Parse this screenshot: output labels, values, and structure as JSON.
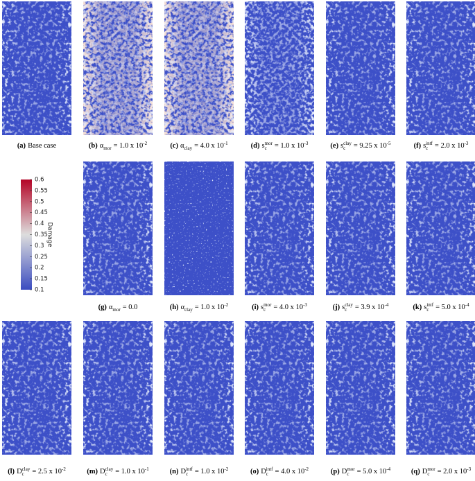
{
  "colorbar": {
    "label": "Damage",
    "range": [
      0.1,
      0.6
    ],
    "ticks": [
      0.1,
      0.15,
      0.2,
      0.25,
      0.3,
      0.35,
      0.4,
      0.45,
      0.5,
      0.55,
      0.6
    ],
    "colors": [
      "#3b4cc0",
      "#dddddd",
      "#b40426"
    ]
  },
  "panels": [
    {
      "letter": "(a)",
      "rest": "Base case"
    },
    {
      "letter": "(b)",
      "symbol": "α",
      "sub": "mor",
      "rest": "= 1.0 x 10",
      "exp": "-2"
    },
    {
      "letter": "(c)",
      "symbol": "α",
      "sub": "clay",
      "rest": "= 4.0 x 10",
      "exp": "-1"
    },
    {
      "letter": "(d)",
      "symbol": "s",
      "sub": "c",
      "sup": "mor",
      "rest": "= 1.0 x 10",
      "exp": "-3"
    },
    {
      "letter": "(e)",
      "symbol": "s",
      "sub": "c",
      "sup": "clay",
      "rest": "= 9.25 x 10",
      "exp": "-5"
    },
    {
      "letter": "(f)",
      "symbol": "s",
      "sub": "c",
      "sup": "intf",
      "rest": "= 2.0 x 10",
      "exp": "-3"
    },
    {
      "letter": "(g)",
      "symbol": "α",
      "sub": "mor",
      "rest": "=  0.0"
    },
    {
      "letter": "(h)",
      "symbol": "α",
      "sub": "clay",
      "rest": "= 1.0 x 10",
      "exp": "-2"
    },
    {
      "letter": "(i)",
      "symbol": "s",
      "sub": "c",
      "sup": "mor",
      "rest": "= 4.0 x 10",
      "exp": "-3"
    },
    {
      "letter": "(j)",
      "symbol": "s",
      "sub": "c",
      "sup": "clay",
      "rest": "= 3.9 x 10",
      "exp": "-4"
    },
    {
      "letter": "(k)",
      "symbol": "s",
      "sub": "c",
      "sup": "intf",
      "rest": "= 5.0 x 10",
      "exp": "-4"
    },
    {
      "letter": "(l)",
      "symbol": "D",
      "sub": "c",
      "sup": "clay",
      "rest": "= 2.5 x 10",
      "exp": "-2"
    },
    {
      "letter": "(m)",
      "symbol": "D",
      "sub": "c",
      "sup": "clay",
      "rest": "= 1.0 x 10",
      "exp": "-1"
    },
    {
      "letter": "(n)",
      "symbol": "D",
      "sub": "c",
      "sup": "intf",
      "rest": "= 1.0 x 10",
      "exp": "-2"
    },
    {
      "letter": "(o)",
      "symbol": "D",
      "sub": "c",
      "sup": "intf",
      "rest": "= 4.0 x 10",
      "exp": "-2"
    },
    {
      "letter": "(p)",
      "symbol": "D",
      "sub": "c",
      "sup": "mor",
      "rest": "= 5.0 x 10",
      "exp": "-4"
    },
    {
      "letter": "(q)",
      "symbol": "D",
      "sub": "c",
      "sup": "mor",
      "rest": "= 2.0 x 10",
      "exp": "-3"
    }
  ]
}
